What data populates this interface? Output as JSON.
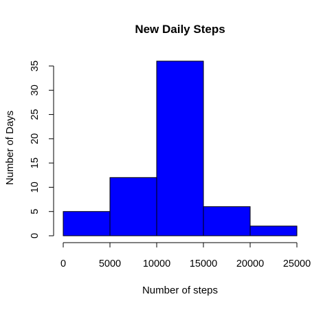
{
  "chart_data": {
    "type": "bar",
    "title": "New Daily Steps",
    "xlabel": "Number of steps",
    "ylabel": "Number of Days",
    "bins": [
      {
        "from": 0,
        "to": 5000,
        "count": 5
      },
      {
        "from": 5000,
        "to": 10000,
        "count": 12
      },
      {
        "from": 10000,
        "to": 15000,
        "count": 36
      },
      {
        "from": 15000,
        "to": 20000,
        "count": 6
      },
      {
        "from": 20000,
        "to": 25000,
        "count": 2
      }
    ],
    "xlim": [
      0,
      25000
    ],
    "ylim": [
      0,
      36
    ],
    "x_ticks": [
      "0",
      "5000",
      "10000",
      "15000",
      "20000",
      "25000"
    ],
    "x_tick_values": [
      0,
      5000,
      10000,
      15000,
      20000,
      25000
    ],
    "y_ticks": [
      "0",
      "5",
      "10",
      "15",
      "20",
      "25",
      "30",
      "35"
    ],
    "y_tick_values": [
      0,
      5,
      10,
      15,
      20,
      25,
      30,
      35
    ],
    "bar_color": "#0000ff",
    "grid": false,
    "legend": "none"
  }
}
